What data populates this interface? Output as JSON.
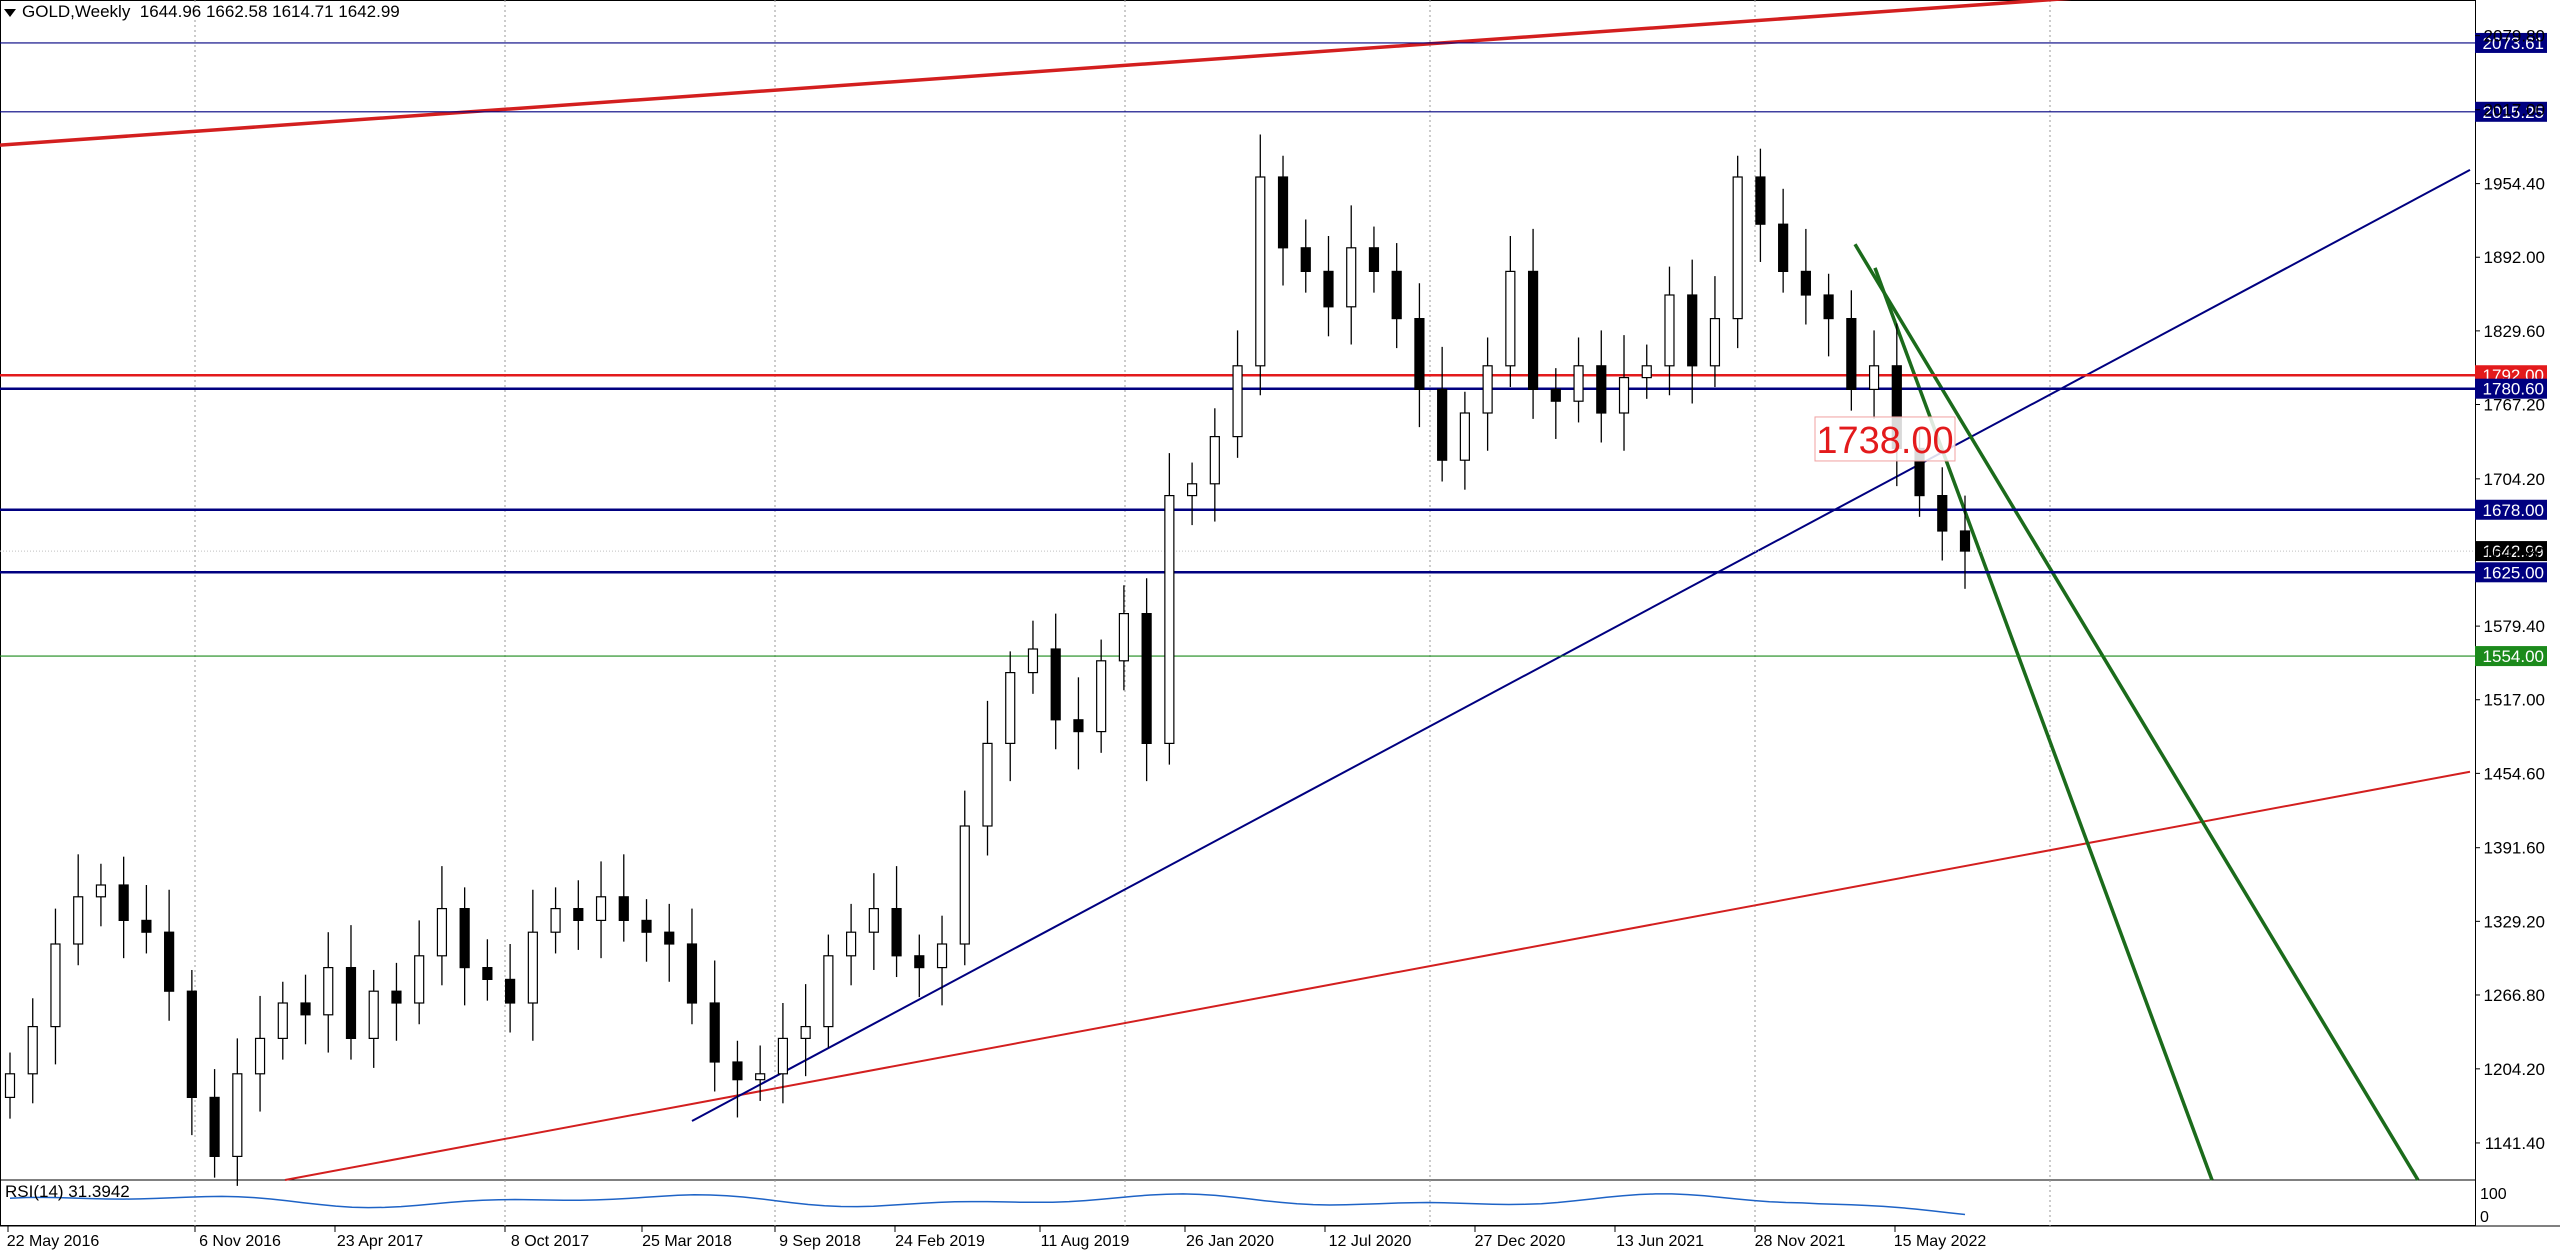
{
  "header": {
    "symbol": "GOLD,Weekly",
    "ohlc": "1644.96 1662.58 1614.71 1642.99"
  },
  "rsi": {
    "label": "RSI(14) 31.3942",
    "scale_labels": [
      "100",
      "0"
    ]
  },
  "annotation": {
    "text": "1738.00",
    "value": 1738.0,
    "color": "#e31a1c"
  },
  "colors": {
    "up_candle": "#ffffff",
    "down_candle": "#000000",
    "support_blue": "#000080",
    "red_line": "#d31f1f",
    "green_line": "#1b6b1b",
    "grid": "#9a9a9a"
  },
  "chart_data": {
    "type": "candlestick",
    "ylim": [
      1110,
      2110
    ],
    "price_axis_ticks": [
      2079.8,
      2017.0,
      1954.4,
      1892.0,
      1829.6,
      1767.2,
      1704.2,
      1641.8,
      1579.4,
      1517.0,
      1454.6,
      1391.6,
      1329.2,
      1266.8,
      1204.2,
      1141.4
    ],
    "price_axis_labels": [
      "2079.80",
      "2017.00",
      "1954.40",
      "1892.00",
      "1829.60",
      "1767.20",
      "1704.20",
      "1641.80",
      "1579.40",
      "1517.00",
      "1454.60",
      "1391.60",
      "1329.20",
      "1266.80",
      "1204.20",
      "1141.40"
    ],
    "date_labels": [
      "22 May 2016",
      "6 Nov 2016",
      "23 Apr 2017",
      "8 Oct 2017",
      "25 Mar 2018",
      "9 Sep 2018",
      "24 Feb 2019",
      "11 Aug 2019",
      "26 Jan 2020",
      "12 Jul 2020",
      "27 Dec 2020",
      "13 Jun 2021",
      "28 Nov 2021",
      "15 May 2022"
    ],
    "horizontal_levels": [
      {
        "value": 2073.61,
        "label": "2073.61",
        "color": "#000080"
      },
      {
        "value": 2015.25,
        "label": "2015.25",
        "color": "#000080"
      },
      {
        "value": 1792.0,
        "label": "1792.00",
        "color": "#e31a1c"
      },
      {
        "value": 1780.6,
        "label": "1780.60",
        "color": "#000080"
      },
      {
        "value": 1678.0,
        "label": "1678.00",
        "color": "#000080"
      },
      {
        "value": 1642.99,
        "label": "1642.99",
        "color": "#000000"
      },
      {
        "value": 1625.0,
        "label": "1625.00",
        "color": "#000080"
      },
      {
        "value": 1554.0,
        "label": "1554.00",
        "color": "#1b8a1b"
      }
    ],
    "trendlines": [
      {
        "name": "red-upper",
        "from": [
          0,
          1987
        ],
        "to": [
          2180,
          2118
        ],
        "color": "#d31f1f"
      },
      {
        "name": "red-lower",
        "from": [
          285,
          1110
        ],
        "to": [
          2470,
          1456
        ],
        "color": "#d31f1f"
      },
      {
        "name": "blue-uptrend",
        "from": [
          692,
          1160
        ],
        "to": [
          2470,
          1966
        ],
        "color": "#000080"
      },
      {
        "name": "green-1",
        "from": [
          1855,
          1903
        ],
        "to": [
          2418,
          1110
        ],
        "color": "#1b6b1b"
      },
      {
        "name": "green-2",
        "from": [
          1875,
          1883
        ],
        "to": [
          2212,
          1110
        ],
        "color": "#1b6b1b"
      }
    ],
    "close_series": [
      1200,
      1240,
      1310,
      1350,
      1360,
      1330,
      1320,
      1270,
      1180,
      1130,
      1200,
      1230,
      1260,
      1250,
      1290,
      1230,
      1270,
      1260,
      1300,
      1340,
      1290,
      1280,
      1260,
      1320,
      1340,
      1330,
      1350,
      1330,
      1320,
      1310,
      1260,
      1210,
      1195,
      1200,
      1230,
      1240,
      1300,
      1320,
      1340,
      1300,
      1290,
      1310,
      1410,
      1480,
      1540,
      1560,
      1500,
      1490,
      1550,
      1590,
      1480,
      1690,
      1700,
      1740,
      1800,
      1960,
      1900,
      1880,
      1850,
      1900,
      1880,
      1840,
      1780,
      1720,
      1760,
      1800,
      1880,
      1780,
      1770,
      1800,
      1760,
      1790,
      1800,
      1860,
      1800,
      1840,
      1960,
      1920,
      1880,
      1860,
      1840,
      1780,
      1800,
      1730,
      1690,
      1660,
      1643
    ]
  }
}
